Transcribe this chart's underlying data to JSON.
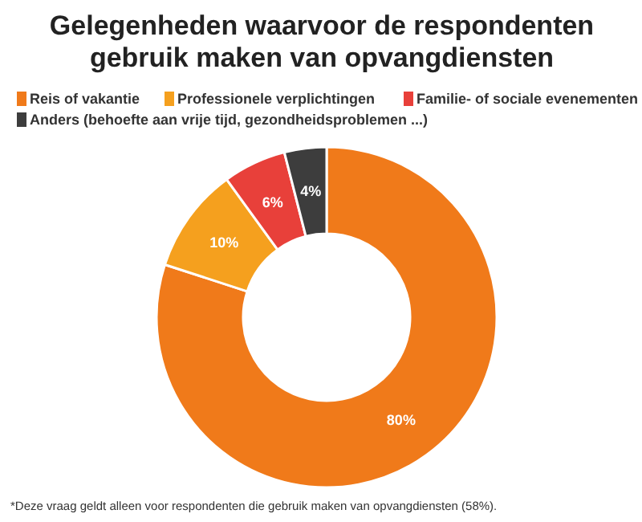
{
  "chart_data": {
    "type": "donut",
    "title": "Gelegenheden waarvoor de respondenten\ngebruik maken van opvangdiensten",
    "categories": [
      "Reis of vakantie",
      "Professionele verplichtingen",
      "Familie- of sociale evenementen",
      "Anders (behoefte aan vrije tijd, gezondheidsproblemen ...)"
    ],
    "values": [
      80,
      10,
      6,
      4
    ],
    "colors": [
      "#f07a1a",
      "#f5a01e",
      "#e8403a",
      "#3d3d3d"
    ],
    "value_labels": [
      "80%",
      "10%",
      "6%",
      "4%"
    ],
    "legend": "top",
    "annotations": [
      "*Deze vraag geldt alleen voor respondenten die gebruik maken van opvangdiensten (58%)."
    ]
  }
}
